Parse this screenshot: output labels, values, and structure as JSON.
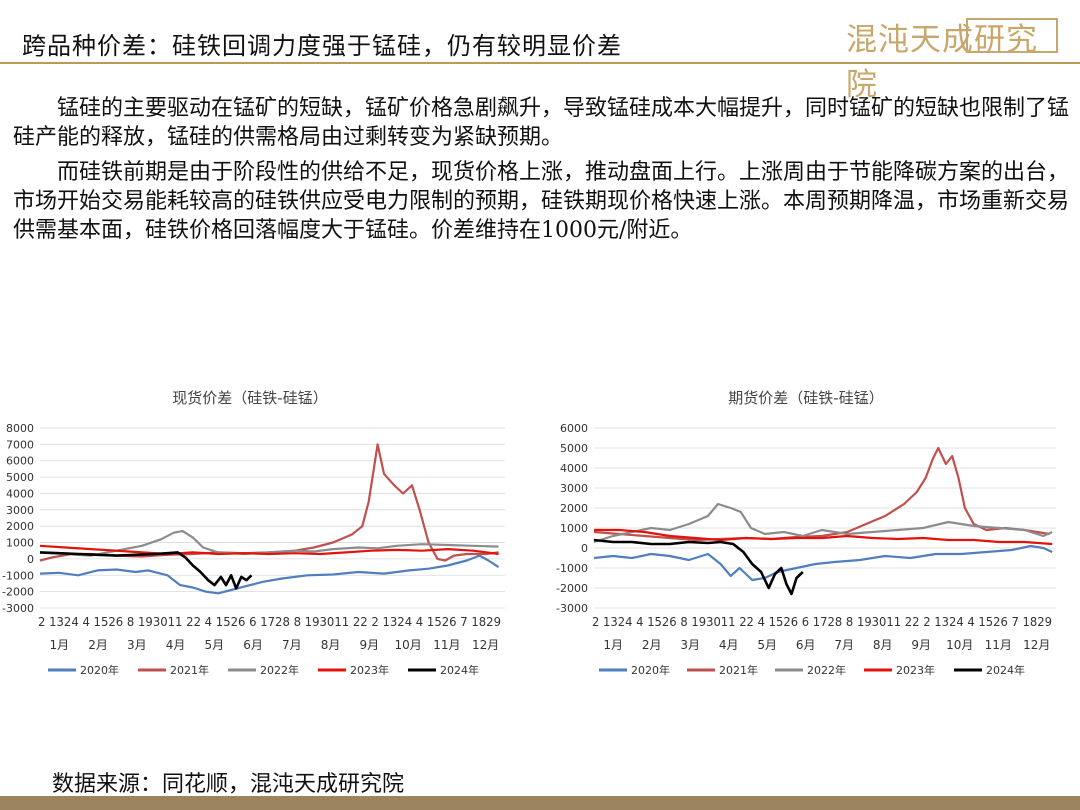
{
  "header": {
    "title": "跨品种价差：硅铁回调力度强于锰硅，仍有较明显价差",
    "logo_text": "混沌天成研究院"
  },
  "body": {
    "paragraph1": "锰硅的主要驱动在锰矿的短缺，锰矿价格急剧飙升，导致锰硅成本大幅提升，同时锰矿的短缺也限制了锰硅产能的释放，锰硅的供需格局由过剩转变为紧缺预期。",
    "paragraph2": "而硅铁前期是由于阶段性的供给不足，现货价格上涨，推动盘面上行。上涨周由于节能降碳方案的出台，市场开始交易能耗较高的硅铁供应受电力限制的预期，硅铁期现价格快速上涨。本周预期降温，市场重新交易供需基本面，硅铁价格回落幅度大于锰硅。价差维持在1000元/附近。"
  },
  "footer": {
    "source": "数据来源：同花顺，混沌天成研究院"
  },
  "series_colors": {
    "2020年": "#4f7fbf",
    "2021年": "#c0504d",
    "2022年": "#8c8c8c",
    "2023年": "#e3120b",
    "2024年": "#000000"
  },
  "chart_data": [
    {
      "type": "line",
      "title": "现货价差（硅铁-硅锰）",
      "ylim": [
        -3000,
        8000
      ],
      "yticks": [
        -3000,
        -2000,
        -1000,
        0,
        1000,
        2000,
        3000,
        4000,
        5000,
        6000,
        7000,
        8000
      ],
      "x_tick_labels": [
        "2",
        "13",
        "24",
        "4",
        "15",
        "26",
        "8",
        "19",
        "30",
        "11",
        "22",
        "4",
        "15",
        "26",
        "6",
        "17",
        "28",
        "8",
        "19",
        "30",
        "11",
        "22",
        "2",
        "13",
        "24",
        "4",
        "15",
        "26",
        "7",
        "18",
        "29"
      ],
      "x_tick_text": "2 1324 4 1526 8 193011 22 4 1526 6 1728 8 193011 22 2 1324 4 1526 7 1829",
      "months": [
        "1月",
        "2月",
        "3月",
        "4月",
        "5月",
        "6月",
        "7月",
        "8月",
        "9月",
        "10月",
        "11月",
        "12月"
      ],
      "x_range": [
        0,
        365
      ],
      "series": [
        {
          "name": "2020年",
          "points": [
            [
              0,
              -900
            ],
            [
              15,
              -850
            ],
            [
              30,
              -1000
            ],
            [
              45,
              -700
            ],
            [
              60,
              -650
            ],
            [
              75,
              -800
            ],
            [
              85,
              -700
            ],
            [
              100,
              -1000
            ],
            [
              110,
              -1600
            ],
            [
              120,
              -1750
            ],
            [
              130,
              -2000
            ],
            [
              140,
              -2100
            ],
            [
              150,
              -1900
            ],
            [
              160,
              -1700
            ],
            [
              175,
              -1400
            ],
            [
              190,
              -1200
            ],
            [
              210,
              -1000
            ],
            [
              230,
              -950
            ],
            [
              250,
              -800
            ],
            [
              270,
              -900
            ],
            [
              290,
              -700
            ],
            [
              305,
              -600
            ],
            [
              320,
              -400
            ],
            [
              335,
              -100
            ],
            [
              345,
              200
            ],
            [
              352,
              -100
            ],
            [
              360,
              -500
            ]
          ]
        },
        {
          "name": "2021年",
          "points": [
            [
              0,
              -100
            ],
            [
              10,
              100
            ],
            [
              25,
              300
            ],
            [
              40,
              300
            ],
            [
              60,
              200
            ],
            [
              80,
              150
            ],
            [
              100,
              250
            ],
            [
              120,
              300
            ],
            [
              140,
              400
            ],
            [
              160,
              350
            ],
            [
              180,
              400
            ],
            [
              200,
              500
            ],
            [
              215,
              700
            ],
            [
              230,
              1000
            ],
            [
              245,
              1500
            ],
            [
              253,
              2000
            ],
            [
              258,
              3500
            ],
            [
              262,
              5500
            ],
            [
              265,
              7000
            ],
            [
              270,
              5200
            ],
            [
              278,
              4500
            ],
            [
              285,
              4000
            ],
            [
              292,
              4500
            ],
            [
              298,
              3000
            ],
            [
              305,
              1000
            ],
            [
              312,
              0
            ],
            [
              318,
              -100
            ],
            [
              325,
              200
            ],
            [
              335,
              300
            ],
            [
              350,
              300
            ],
            [
              360,
              400
            ]
          ]
        },
        {
          "name": "2022年",
          "points": [
            [
              0,
              400
            ],
            [
              20,
              300
            ],
            [
              40,
              200
            ],
            [
              60,
              500
            ],
            [
              80,
              800
            ],
            [
              95,
              1200
            ],
            [
              105,
              1600
            ],
            [
              112,
              1700
            ],
            [
              120,
              1300
            ],
            [
              128,
              700
            ],
            [
              140,
              400
            ],
            [
              160,
              300
            ],
            [
              180,
              400
            ],
            [
              200,
              500
            ],
            [
              215,
              450
            ],
            [
              230,
              600
            ],
            [
              250,
              700
            ],
            [
              265,
              650
            ],
            [
              280,
              800
            ],
            [
              300,
              900
            ],
            [
              320,
              850
            ],
            [
              340,
              800
            ],
            [
              360,
              750
            ]
          ]
        },
        {
          "name": "2023年",
          "points": [
            [
              0,
              800
            ],
            [
              20,
              700
            ],
            [
              40,
              600
            ],
            [
              60,
              500
            ],
            [
              80,
              400
            ],
            [
              100,
              300
            ],
            [
              120,
              400
            ],
            [
              140,
              300
            ],
            [
              160,
              350
            ],
            [
              180,
              300
            ],
            [
              200,
              350
            ],
            [
              220,
              300
            ],
            [
              240,
              400
            ],
            [
              260,
              500
            ],
            [
              280,
              550
            ],
            [
              300,
              500
            ],
            [
              320,
              600
            ],
            [
              340,
              500
            ],
            [
              360,
              300
            ]
          ]
        },
        {
          "name": "2024年",
          "points": [
            [
              0,
              400
            ],
            [
              15,
              350
            ],
            [
              30,
              300
            ],
            [
              45,
              250
            ],
            [
              60,
              200
            ],
            [
              75,
              250
            ],
            [
              90,
              300
            ],
            [
              100,
              350
            ],
            [
              108,
              400
            ],
            [
              114,
              100
            ],
            [
              120,
              -400
            ],
            [
              126,
              -800
            ],
            [
              132,
              -1300
            ],
            [
              137,
              -1600
            ],
            [
              142,
              -1100
            ],
            [
              146,
              -1600
            ],
            [
              150,
              -1000
            ],
            [
              154,
              -1800
            ],
            [
              158,
              -1100
            ],
            [
              162,
              -1300
            ],
            [
              166,
              -1000
            ]
          ]
        }
      ]
    },
    {
      "type": "line",
      "title": "期货价差（硅铁-硅锰）",
      "ylim": [
        -3000,
        6000
      ],
      "yticks": [
        -3000,
        -2000,
        -1000,
        0,
        1000,
        2000,
        3000,
        4000,
        5000,
        6000
      ],
      "x_tick_labels": [
        "2",
        "13",
        "24",
        "4",
        "15",
        "26",
        "8",
        "19",
        "30",
        "11",
        "22",
        "4",
        "15",
        "26",
        "6",
        "17",
        "28",
        "8",
        "19",
        "30",
        "11",
        "22",
        "2",
        "13",
        "24",
        "4",
        "15",
        "26",
        "7",
        "18",
        "29"
      ],
      "x_tick_text": "2 1324 4 1526 8 193011 22 4 1526 6 1728 8 193011 22 2 1324 4 1526 7 1829",
      "months": [
        "1月",
        "2月",
        "3月",
        "4月",
        "5月",
        "6月",
        "7月",
        "8月",
        "9月",
        "10月",
        "11月",
        "12月"
      ],
      "x_range": [
        0,
        365
      ],
      "series": [
        {
          "name": "2020年",
          "points": [
            [
              0,
              -500
            ],
            [
              15,
              -400
            ],
            [
              30,
              -500
            ],
            [
              45,
              -300
            ],
            [
              60,
              -400
            ],
            [
              75,
              -600
            ],
            [
              90,
              -300
            ],
            [
              100,
              -800
            ],
            [
              108,
              -1400
            ],
            [
              115,
              -1000
            ],
            [
              125,
              -1600
            ],
            [
              135,
              -1500
            ],
            [
              145,
              -1200
            ],
            [
              160,
              -1000
            ],
            [
              175,
              -800
            ],
            [
              190,
              -700
            ],
            [
              210,
              -600
            ],
            [
              230,
              -400
            ],
            [
              250,
              -500
            ],
            [
              270,
              -300
            ],
            [
              290,
              -300
            ],
            [
              310,
              -200
            ],
            [
              330,
              -100
            ],
            [
              345,
              100
            ],
            [
              355,
              0
            ],
            [
              362,
              -200
            ]
          ]
        },
        {
          "name": "2021年",
          "points": [
            [
              0,
              800
            ],
            [
              20,
              700
            ],
            [
              40,
              600
            ],
            [
              60,
              500
            ],
            [
              80,
              400
            ],
            [
              100,
              450
            ],
            [
              120,
              500
            ],
            [
              140,
              450
            ],
            [
              160,
              550
            ],
            [
              180,
              600
            ],
            [
              200,
              800
            ],
            [
              215,
              1200
            ],
            [
              230,
              1600
            ],
            [
              245,
              2200
            ],
            [
              255,
              2800
            ],
            [
              262,
              3500
            ],
            [
              268,
              4500
            ],
            [
              272,
              5000
            ],
            [
              278,
              4200
            ],
            [
              283,
              4600
            ],
            [
              288,
              3500
            ],
            [
              293,
              2000
            ],
            [
              300,
              1200
            ],
            [
              310,
              900
            ],
            [
              325,
              1000
            ],
            [
              340,
              900
            ],
            [
              360,
              700
            ]
          ]
        },
        {
          "name": "2022年",
          "points": [
            [
              0,
              300
            ],
            [
              15,
              600
            ],
            [
              30,
              800
            ],
            [
              45,
              1000
            ],
            [
              60,
              900
            ],
            [
              75,
              1200
            ],
            [
              90,
              1600
            ],
            [
              98,
              2200
            ],
            [
              108,
              2000
            ],
            [
              116,
              1800
            ],
            [
              124,
              1000
            ],
            [
              135,
              700
            ],
            [
              150,
              800
            ],
            [
              165,
              600
            ],
            [
              180,
              900
            ],
            [
              200,
              700
            ],
            [
              220,
              800
            ],
            [
              240,
              900
            ],
            [
              260,
              1000
            ],
            [
              280,
              1300
            ],
            [
              300,
              1100
            ],
            [
              320,
              1000
            ],
            [
              340,
              900
            ],
            [
              355,
              600
            ],
            [
              362,
              800
            ]
          ]
        },
        {
          "name": "2023年",
          "points": [
            [
              0,
              900
            ],
            [
              20,
              900
            ],
            [
              40,
              800
            ],
            [
              60,
              600
            ],
            [
              80,
              500
            ],
            [
              100,
              400
            ],
            [
              120,
              500
            ],
            [
              140,
              450
            ],
            [
              160,
              500
            ],
            [
              180,
              500
            ],
            [
              200,
              600
            ],
            [
              220,
              500
            ],
            [
              240,
              450
            ],
            [
              260,
              500
            ],
            [
              280,
              400
            ],
            [
              300,
              400
            ],
            [
              320,
              300
            ],
            [
              340,
              300
            ],
            [
              362,
              200
            ]
          ]
        },
        {
          "name": "2024年",
          "points": [
            [
              0,
              400
            ],
            [
              15,
              300
            ],
            [
              30,
              300
            ],
            [
              45,
              200
            ],
            [
              60,
              200
            ],
            [
              75,
              300
            ],
            [
              90,
              250
            ],
            [
              100,
              300
            ],
            [
              110,
              200
            ],
            [
              118,
              -200
            ],
            [
              125,
              -800
            ],
            [
              132,
              -1200
            ],
            [
              138,
              -2000
            ],
            [
              143,
              -1300
            ],
            [
              148,
              -1000
            ],
            [
              152,
              -1800
            ],
            [
              156,
              -2300
            ],
            [
              160,
              -1500
            ],
            [
              165,
              -1200
            ]
          ]
        }
      ]
    }
  ]
}
